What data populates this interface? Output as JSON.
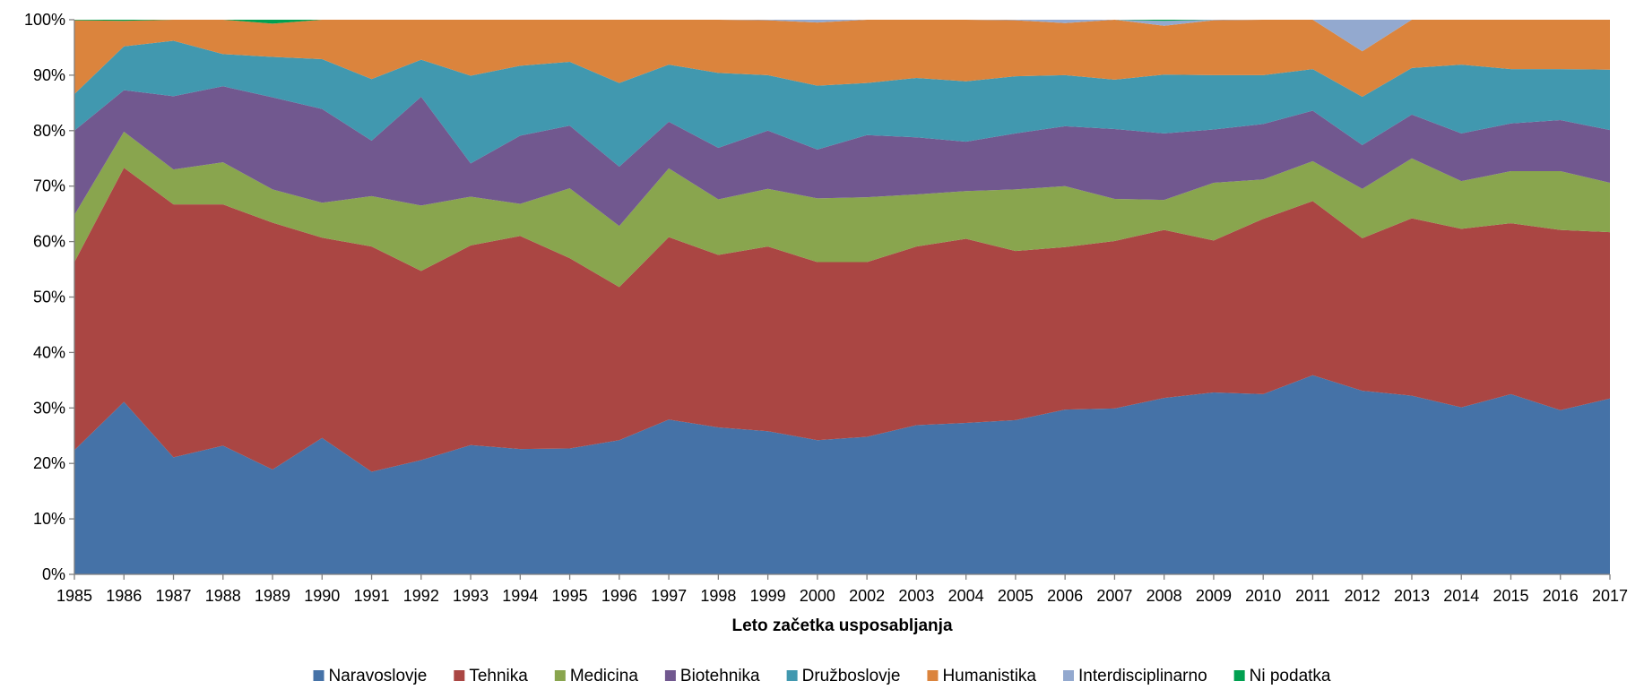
{
  "chart_data": {
    "type": "area",
    "stacked": "percent",
    "title": "",
    "xlabel": "Leto začetka usposabljanja",
    "ylabel": "",
    "ylim": [
      0,
      100
    ],
    "y_ticks": [
      "0%",
      "10%",
      "20%",
      "30%",
      "40%",
      "50%",
      "60%",
      "70%",
      "80%",
      "90%",
      "100%"
    ],
    "grid": false,
    "legend_position": "bottom",
    "categories": [
      "1985",
      "1986",
      "1987",
      "1988",
      "1989",
      "1990",
      "1991",
      "1992",
      "1993",
      "1994",
      "1995",
      "1996",
      "1997",
      "1998",
      "1999",
      "2000",
      "2002",
      "2003",
      "2004",
      "2005",
      "2006",
      "2007",
      "2008",
      "2009",
      "2010",
      "2011",
      "2012",
      "2013",
      "2014",
      "2015",
      "2016",
      "2017"
    ],
    "series": [
      {
        "name": "Naravoslovje",
        "color": "#4572a7",
        "values": [
          22.4,
          31.1,
          21.1,
          23.2,
          18.9,
          24.6,
          18.5,
          20.6,
          23.3,
          22.6,
          22.7,
          24.2,
          27.9,
          26.5,
          25.8,
          24.2,
          24.8,
          26.9,
          27.3,
          27.8,
          29.7,
          29.9,
          31.8,
          32.8,
          32.5,
          35.9,
          33.1,
          32.2,
          30.1,
          32.5,
          29.6,
          31.7
        ]
      },
      {
        "name": "Tehnika",
        "color": "#aa4643",
        "values": [
          33.9,
          42.2,
          45.6,
          43.5,
          44.5,
          36.1,
          40.6,
          34.1,
          36.0,
          38.4,
          34.3,
          27.6,
          32.9,
          31.1,
          33.3,
          32.1,
          31.5,
          32.2,
          33.2,
          30.5,
          29.3,
          30.2,
          30.3,
          27.4,
          31.6,
          31.4,
          27.5,
          32.0,
          32.2,
          30.8,
          32.5,
          30.0
        ]
      },
      {
        "name": "Medicina",
        "color": "#89a54e",
        "values": [
          8.5,
          6.5,
          6.3,
          7.6,
          6.0,
          6.3,
          9.1,
          11.8,
          8.8,
          5.8,
          12.6,
          11.0,
          12.4,
          10.0,
          10.4,
          11.5,
          11.7,
          9.4,
          8.6,
          11.1,
          11.0,
          7.6,
          5.4,
          10.4,
          7.1,
          7.2,
          8.9,
          10.8,
          8.6,
          9.4,
          10.6,
          8.9
        ]
      },
      {
        "name": "Biotehnika",
        "color": "#71588f",
        "values": [
          15.2,
          7.5,
          13.2,
          13.7,
          16.6,
          16.9,
          10.0,
          19.6,
          6.0,
          12.3,
          11.3,
          10.7,
          8.4,
          9.3,
          10.5,
          8.8,
          11.2,
          10.3,
          8.9,
          10.1,
          10.8,
          12.6,
          12.0,
          9.6,
          10.0,
          9.1,
          7.9,
          7.9,
          8.6,
          8.6,
          9.2,
          9.5
        ]
      },
      {
        "name": "Družboslovje",
        "color": "#4198af",
        "values": [
          6.6,
          7.9,
          10.0,
          5.8,
          7.3,
          9.0,
          11.1,
          6.7,
          15.8,
          12.6,
          11.5,
          15.1,
          10.3,
          13.5,
          10.0,
          11.5,
          9.4,
          10.7,
          10.9,
          10.3,
          9.2,
          8.9,
          10.6,
          9.8,
          8.8,
          7.5,
          8.7,
          8.4,
          12.4,
          9.8,
          9.2,
          10.9
        ]
      },
      {
        "name": "Humanistika",
        "color": "#db843d",
        "values": [
          13.3,
          4.6,
          3.9,
          6.2,
          6.0,
          7.1,
          10.7,
          7.2,
          10.1,
          8.3,
          7.6,
          11.4,
          8.1,
          9.6,
          9.9,
          11.4,
          11.4,
          10.5,
          11.1,
          10.1,
          9.4,
          10.8,
          8.8,
          9.9,
          10.0,
          8.9,
          8.2,
          8.7,
          8.1,
          8.9,
          8.9,
          9.0
        ]
      },
      {
        "name": "Interdisciplinarno",
        "color": "#93a9cf",
        "values": [
          0,
          0,
          0,
          0,
          0,
          0.3,
          0,
          0,
          0,
          0,
          0,
          0,
          0,
          0,
          0.1,
          0.5,
          0,
          0,
          0,
          0.1,
          0.6,
          0,
          0.9,
          0.1,
          0,
          0,
          5.7,
          0,
          0,
          0,
          0,
          0
        ]
      },
      {
        "name": "Ni podatka",
        "color": "#00a050",
        "values": [
          0.1,
          0.2,
          0,
          0,
          0.7,
          0,
          0,
          0,
          0,
          0,
          0,
          0,
          0,
          0,
          0,
          0,
          0,
          0,
          0,
          0,
          0,
          0,
          0.2,
          0,
          0,
          0,
          0,
          0,
          0,
          0,
          0,
          0
        ]
      }
    ]
  }
}
